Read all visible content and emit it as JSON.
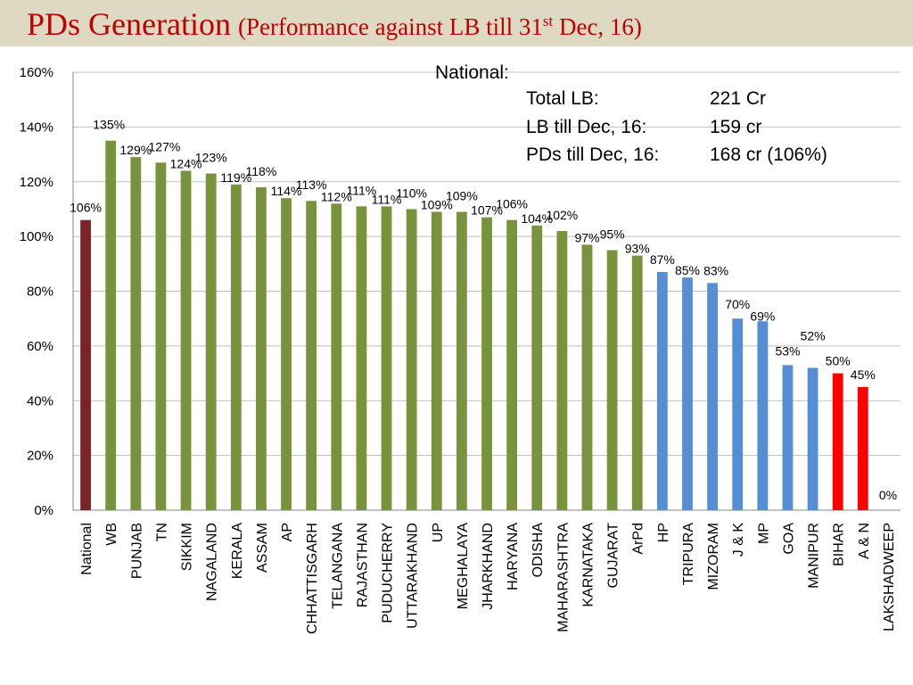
{
  "title": {
    "main": "PDs Generation",
    "sub_prefix": "(Performance against LB till 31",
    "sub_sup": "st",
    "sub_suffix": " Dec, 16)"
  },
  "national_box": {
    "heading": "National:",
    "rows": [
      {
        "key": "Total LB:",
        "value": "221 Cr"
      },
      {
        "key": "LB till Dec, 16:",
        "value": "159 cr"
      },
      {
        "key": "PDs till Dec, 16:",
        "value": "168 cr (106%)"
      }
    ]
  },
  "colors": {
    "national": "#7b2326",
    "green": "#77933c",
    "blue": "#558ed5",
    "red": "#ff0000"
  },
  "chart_data": {
    "type": "bar",
    "title": "PDs Generation (Performance against LB till 31st Dec, 16)",
    "xlabel": "",
    "ylabel": "",
    "ylim": [
      0,
      160
    ],
    "yticks": [
      "0%",
      "20%",
      "40%",
      "60%",
      "80%",
      "100%",
      "120%",
      "140%",
      "160%"
    ],
    "gridlines": true,
    "categories": [
      "National",
      "WB",
      "PUNJAB",
      "TN",
      "SIKKIM",
      "NAGALAND",
      "KERALA",
      "ASSAM",
      "AP",
      "CHHATTISGARH",
      "TELANGANA",
      "RAJASTHAN",
      "PUDUCHERRY",
      "UTTARAKHAND",
      "UP",
      "MEGHALAYA",
      "JHARKHAND",
      "HARYANA",
      "ODISHA",
      "MAHARASHTRA",
      "KARNATAKA",
      "GUJARAT",
      "ArPd",
      "HP",
      "TRIPURA",
      "MIZORAM",
      "J & K",
      "MP",
      "GOA",
      "MANIPUR",
      "BIHAR",
      "A & N",
      "LAKSHADWEEP"
    ],
    "values": [
      106,
      135,
      129,
      127,
      124,
      123,
      119,
      118,
      114,
      113,
      112,
      111,
      111,
      110,
      109,
      109,
      107,
      106,
      104,
      102,
      97,
      95,
      93,
      87,
      85,
      83,
      70,
      69,
      53,
      52,
      50,
      45,
      0
    ],
    "labels": [
      "106%",
      "135%",
      "129%",
      "127%",
      "124%",
      "123%",
      "119%",
      "118%",
      "114%",
      "113%",
      "112%",
      "111%",
      "111%",
      "110%",
      "109%",
      "109%",
      "107%",
      "106%",
      "104%",
      "102%",
      "97%",
      "95%",
      "93%",
      "87%",
      "85%",
      "83%",
      "70%",
      "69%",
      "53%",
      "52%",
      "50%",
      "45%",
      "0%"
    ],
    "bar_colors": [
      "national",
      "green",
      "green",
      "green",
      "green",
      "green",
      "green",
      "green",
      "green",
      "green",
      "green",
      "green",
      "green",
      "green",
      "green",
      "green",
      "green",
      "green",
      "green",
      "green",
      "green",
      "green",
      "green",
      "blue",
      "blue",
      "blue",
      "blue",
      "blue",
      "blue",
      "blue",
      "red",
      "red",
      "red"
    ]
  }
}
